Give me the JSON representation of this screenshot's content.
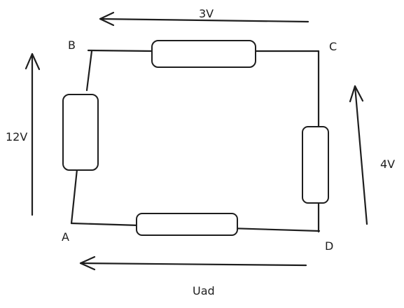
{
  "diagram": {
    "nodes": {
      "a": "A",
      "b": "B",
      "c": "C",
      "d": "D"
    },
    "voltages": {
      "top": "3V",
      "left": "12V",
      "right": "4V",
      "bottom": "Uad"
    },
    "stroke_color": "#1e1e1e",
    "background_color": "#ffffff"
  }
}
